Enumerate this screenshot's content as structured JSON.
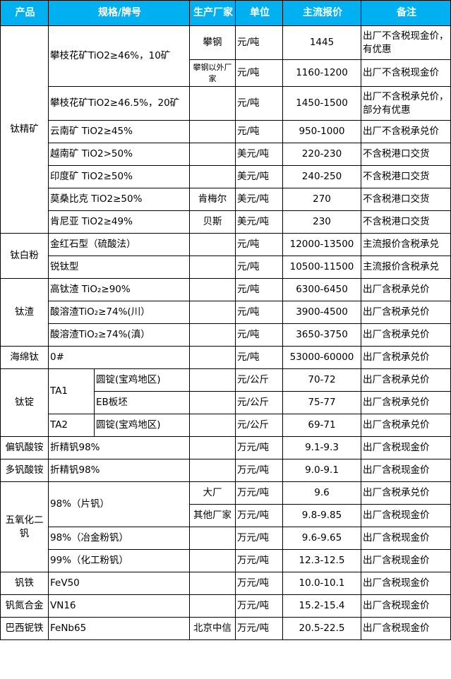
{
  "header": {
    "product": "产品",
    "spec": "规格/牌号",
    "maker": "生产厂家",
    "unit": "单位",
    "price": "主流报价",
    "note": "备注"
  },
  "colors": {
    "header_bg": "#00b0f0",
    "header_text": "#ffffff"
  },
  "groups": [
    {
      "product": "钛精矿",
      "rows": [
        {
          "spec": "攀枝花矿TiO2≥46%，10矿",
          "maker": "攀钢",
          "unit": "元/吨",
          "price": "1445",
          "note": "出厂不含税现金价，有优惠"
        },
        {
          "spec": "攀枝花矿TiO2≥46%，10矿",
          "maker": "攀钢以外厂家",
          "unit": "元/吨",
          "price": "1160-1200",
          "note": "出厂不含税现金价"
        },
        {
          "spec": "攀枝花矿TiO2≥46.5%，20矿",
          "maker": "",
          "unit": "元/吨",
          "price": "1450-1500",
          "note": "出厂不含税承兑价，部分有优惠"
        },
        {
          "spec": "云南矿 TiO2≥45%",
          "maker": "",
          "unit": "元/吨",
          "price": "950-1000",
          "note": "出厂不含税承兑价"
        },
        {
          "spec": "越南矿 TiO2>50%",
          "maker": "",
          "unit": "美元/吨",
          "price": "220-230",
          "note": "不含税港口交货"
        },
        {
          "spec": "印度矿 TiO2≥50%",
          "maker": "",
          "unit": "美元/吨",
          "price": "240-250",
          "note": "不含税港口交货"
        },
        {
          "spec": "莫桑比克 TiO2≥50%",
          "maker": "肯梅尔",
          "unit": "美元/吨",
          "price": "270",
          "note": "不含税港口交货"
        },
        {
          "spec": "肯尼亚 TiO2≥49%",
          "maker": "贝斯",
          "unit": "美元/吨",
          "price": "230",
          "note": "不含税港口交货"
        }
      ]
    },
    {
      "product": "钛白粉",
      "rows": [
        {
          "spec": "金红石型（硫酸法）",
          "maker": "",
          "unit": "元/吨",
          "price": "12000-13500",
          "note": "主流报价含税承兑"
        },
        {
          "spec": "锐钛型",
          "maker": "",
          "unit": "元/吨",
          "price": "10500-11500",
          "note": "主流报价含税承兑"
        }
      ]
    },
    {
      "product": "钛渣",
      "rows": [
        {
          "spec": "高钛渣 TiO₂≥90%",
          "maker": "",
          "unit": "元/吨",
          "price": "6300-6450",
          "note": "出厂含税承兑价"
        },
        {
          "spec": "酸溶渣TiO₂≥74%(川）",
          "maker": "",
          "unit": "元/吨",
          "price": "3900-4500",
          "note": "出厂含税承兑价"
        },
        {
          "spec": "酸溶渣TiO₂≥74%(滇）",
          "maker": "",
          "unit": "元/吨",
          "price": "3650-3750",
          "note": "出厂含税承兑价"
        }
      ]
    },
    {
      "product": "海绵钛",
      "rows": [
        {
          "spec": "0#",
          "maker": "",
          "unit": "元/吨",
          "price": "53000-60000",
          "note": "出厂含税承兑价"
        }
      ]
    },
    {
      "product": "钛锭",
      "rows": [
        {
          "grade": "TA1",
          "sub": "圆锭(宝鸡地区)",
          "maker": "",
          "unit": "元/公斤",
          "price": "70-72",
          "note": "出厂含税承兑价"
        },
        {
          "grade": "TA1",
          "sub": "EB板坯",
          "maker": "",
          "unit": "元/公斤",
          "price": "75-77",
          "note": "出厂含税承兑价"
        },
        {
          "grade": "TA2",
          "sub": "圆锭(宝鸡地区)",
          "maker": "",
          "unit": "元/公斤",
          "price": "69-71",
          "note": "出厂含税承兑价"
        }
      ]
    },
    {
      "product": "偏钒酸铵",
      "rows": [
        {
          "spec": "折精钒98%",
          "maker": "",
          "unit": "万元/吨",
          "price": "9.1-9.3",
          "note": "出厂含税现金价"
        }
      ]
    },
    {
      "product": "多钒酸铵",
      "rows": [
        {
          "spec": "折精钒98%",
          "maker": "",
          "unit": "万元/吨",
          "price": "9.0-9.1",
          "note": "出厂含税现金价"
        }
      ]
    },
    {
      "product": "五氧化二钒",
      "rows": [
        {
          "spec": "98%（片钒）",
          "maker": "大厂",
          "unit": "万元/吨",
          "price": "9.6",
          "note": "出厂含税承兑价"
        },
        {
          "spec": "98%（片钒）",
          "maker": "其他厂家",
          "unit": "万元/吨",
          "price": "9.8-9.85",
          "note": "出厂含税现金价"
        },
        {
          "spec": "98%（冶金粉钒）",
          "maker": "",
          "unit": "万元/吨",
          "price": "9.6-9.65",
          "note": "出厂含税现金价"
        },
        {
          "spec": "99%（化工粉钒）",
          "maker": "",
          "unit": "万元/吨",
          "price": "12.3-12.5",
          "note": "出厂含税现金价"
        }
      ]
    },
    {
      "product": "钒铁",
      "rows": [
        {
          "spec": "FeV50",
          "maker": "",
          "unit": "万元/吨",
          "price": "10.0-10.1",
          "note": "出厂含税现金价"
        }
      ]
    },
    {
      "product": "钒氮合金",
      "rows": [
        {
          "spec": "VN16",
          "maker": "",
          "unit": "万元/吨",
          "price": "15.2-15.4",
          "note": "出厂含税现金价"
        }
      ]
    },
    {
      "product": "巴西铌铁",
      "rows": [
        {
          "spec": "FeNb65",
          "maker": "北京中信",
          "unit": "万元/吨",
          "price": "20.5-22.5",
          "note": "出厂含税现金价"
        }
      ]
    }
  ]
}
